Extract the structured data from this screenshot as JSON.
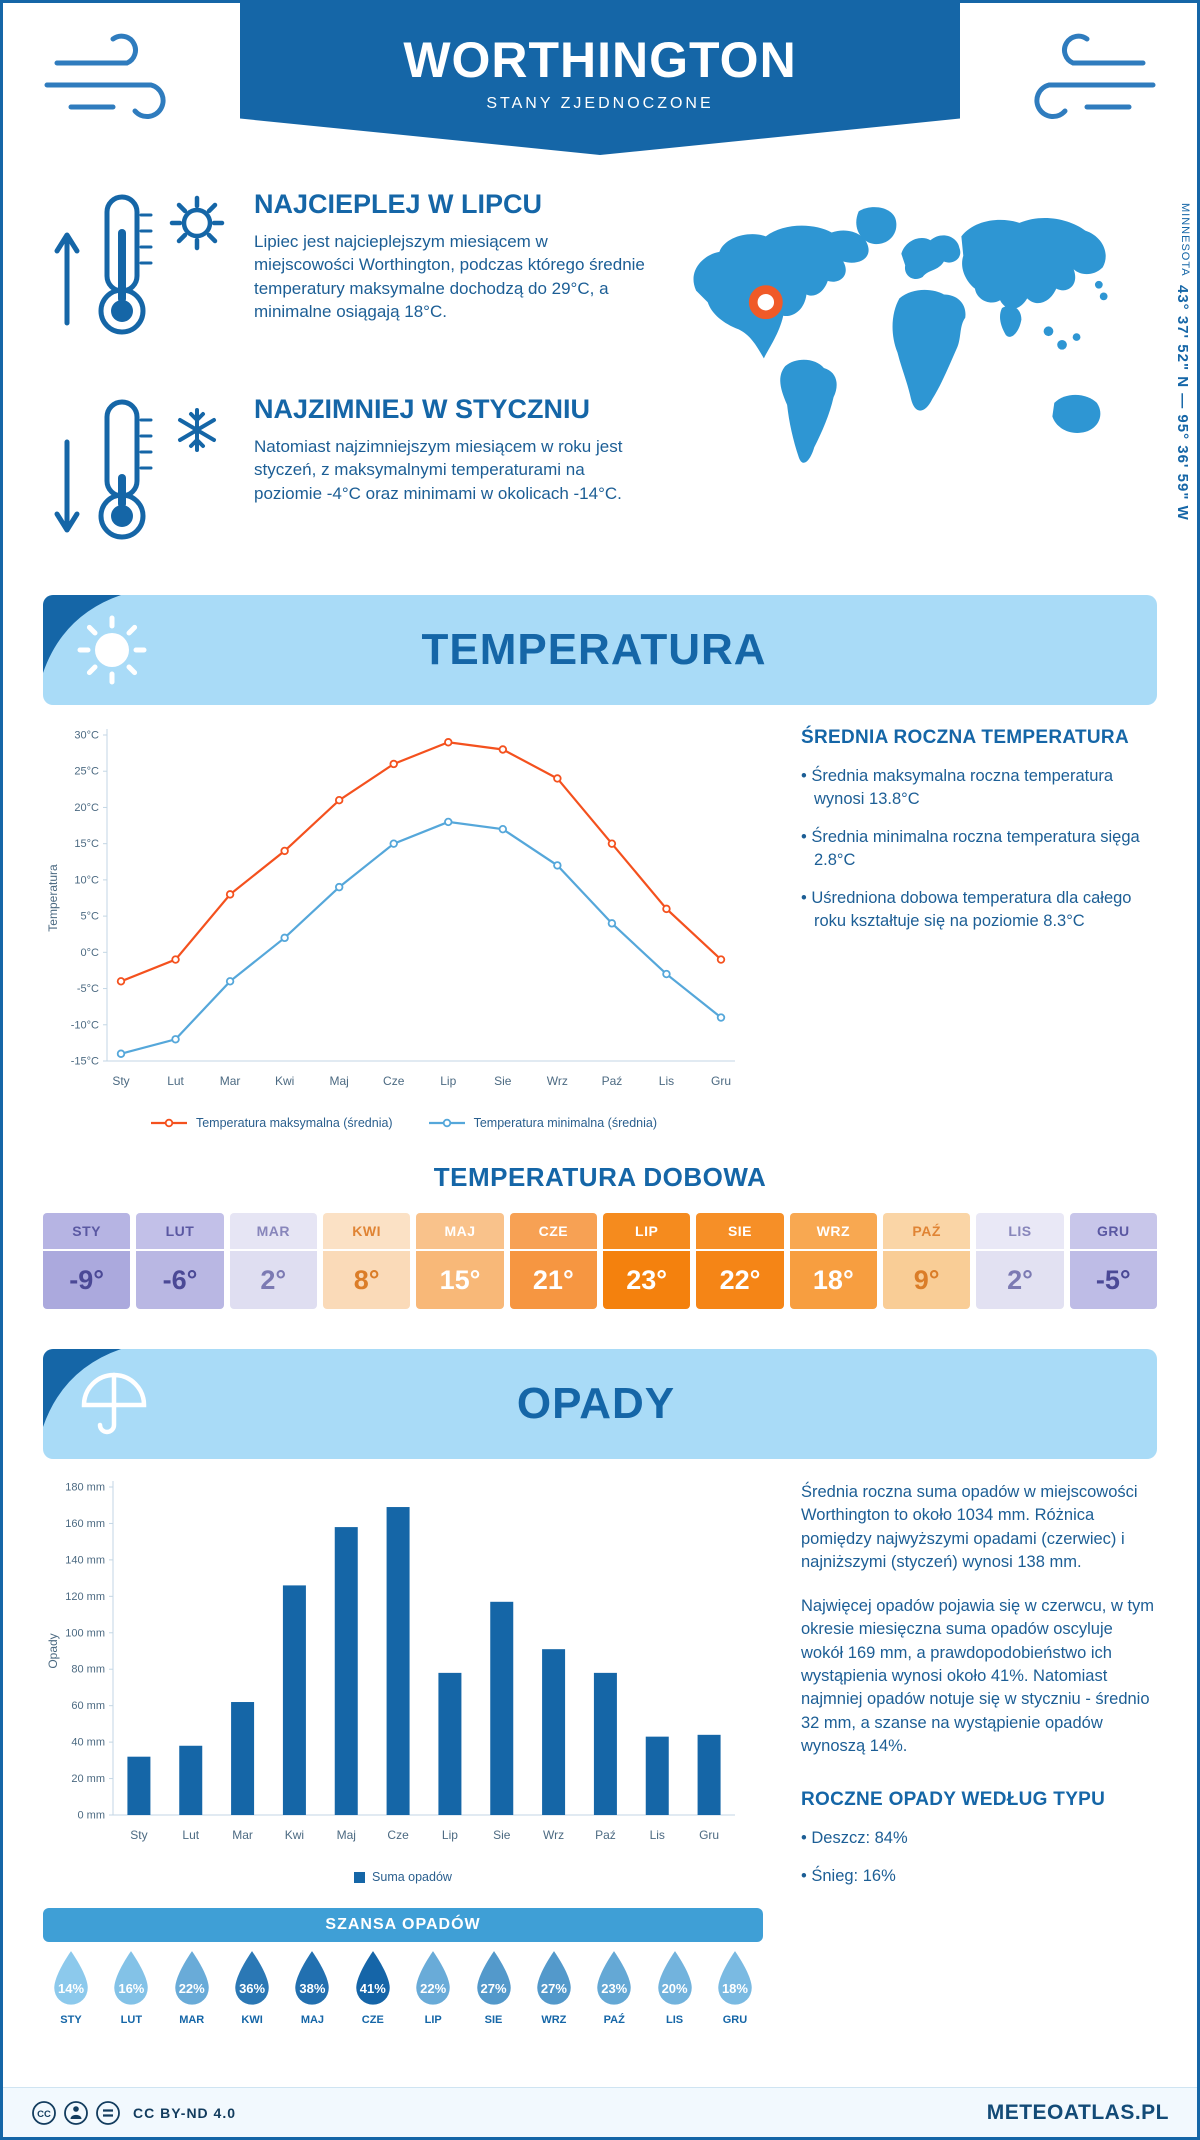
{
  "page": {
    "title": "WORTHINGTON",
    "subtitle": "STANY ZJEDNOCZONE",
    "region": "MINNESOTA",
    "coords": "43° 37' 52\" N — 95° 36' 59\" W"
  },
  "highlights": [
    {
      "title": "NAJCIEPLEJ W LIPCU",
      "text": "Lipiec jest najcieplejszym miesiącem w miejscowości Worthington, podczas którego średnie temperatury maksymalne dochodzą do 29°C, a minimalne osiągają 18°C."
    },
    {
      "title": "NAJZIMNIEJ W STYCZNIU",
      "text": "Natomiast najzimniejszym miesiącem w roku jest styczeń, z maksymalnymi temperaturami na poziomie -4°C oraz minimami w okolicach -14°C."
    }
  ],
  "sections": {
    "temperature": {
      "title": "TEMPERATURA",
      "summary_title": "ŚREDNIA ROCZNA TEMPERATURA",
      "bullets": [
        "• Średnia maksymalna roczna temperatura wynosi 13.8°C",
        "• Średnia minimalna roczna temperatura sięga 2.8°C",
        "• Uśredniona dobowa temperatura dla całego roku kształtuje się na poziomie 8.3°C"
      ],
      "daily_title": "TEMPERATURA DOBOWA"
    },
    "precipitation": {
      "title": "OPADY",
      "paragraphs": [
        "Średnia roczna suma opadów w miejscowości Worthington to około 1034 mm. Różnica pomiędzy najwyższymi opadami (czerwiec) i najniższymi (styczeń) wynosi 138 mm.",
        "Najwięcej opadów pojawia się w czerwcu, w tym okresie miesięczna suma opadów oscyluje wokół 169 mm, a prawdopodobieństwo ich wystąpienia wynosi około 41%. Natomiast najmniej opadów notuje się w styczniu - średnio 32 mm, a szanse na wystąpienie opadów wynoszą 14%."
      ],
      "type_title": "ROCZNE OPADY WEDŁUG TYPU",
      "type_bullets": [
        "• Deszcz: 84%",
        "• Śnieg: 16%"
      ],
      "chance_title": "SZANSA OPADÓW",
      "chance_colors": {
        "low": "#8cc9ec",
        "high": "#1565a8"
      },
      "chances": [
        {
          "month": "STY",
          "percent": "14%"
        },
        {
          "month": "LUT",
          "percent": "16%"
        },
        {
          "month": "MAR",
          "percent": "22%"
        },
        {
          "month": "KWI",
          "percent": "36%"
        },
        {
          "month": "MAJ",
          "percent": "38%"
        },
        {
          "month": "CZE",
          "percent": "41%"
        },
        {
          "month": "LIP",
          "percent": "22%"
        },
        {
          "month": "SIE",
          "percent": "27%"
        },
        {
          "month": "WRZ",
          "percent": "27%"
        },
        {
          "month": "PAŹ",
          "percent": "23%"
        },
        {
          "month": "LIS",
          "percent": "20%"
        },
        {
          "month": "GRU",
          "percent": "18%"
        }
      ]
    }
  },
  "chart_data": [
    {
      "type": "line",
      "title": "TEMPERATURA",
      "categories": [
        "Sty",
        "Lut",
        "Mar",
        "Kwi",
        "Maj",
        "Cze",
        "Lip",
        "Sie",
        "Wrz",
        "Paź",
        "Lis",
        "Gru"
      ],
      "series": [
        {
          "name": "Temperatura maksymalna (średnia)",
          "color": "#f4511e",
          "values": [
            -4,
            -1,
            8,
            14,
            21,
            26,
            29,
            28,
            24,
            15,
            6,
            -1
          ]
        },
        {
          "name": "Temperatura minimalna (średnia)",
          "color": "#55a7da",
          "values": [
            -14,
            -12,
            -4,
            2,
            9,
            15,
            18,
            17,
            12,
            4,
            -3,
            -9
          ]
        }
      ],
      "xlabel": "",
      "ylabel": "Temperatura",
      "ylim": [
        -15,
        30
      ],
      "ytick_step": 5,
      "ytick_suffix": "°C",
      "grid": false,
      "legend_position": "bottom"
    },
    {
      "type": "bar",
      "title": "OPADY",
      "categories": [
        "Sty",
        "Lut",
        "Mar",
        "Kwi",
        "Maj",
        "Cze",
        "Lip",
        "Sie",
        "Wrz",
        "Paź",
        "Lis",
        "Gru"
      ],
      "series": [
        {
          "name": "Suma opadów",
          "color": "#1566a7",
          "values": [
            32,
            38,
            62,
            126,
            158,
            169,
            78,
            117,
            91,
            78,
            43,
            44
          ]
        }
      ],
      "xlabel": "",
      "ylabel": "Opady",
      "ylim": [
        0,
        180
      ],
      "ytick_step": 20,
      "ytick_suffix": " mm",
      "grid": false,
      "legend_position": "bottom"
    }
  ],
  "monthly_temps": [
    {
      "month": "STY",
      "value": "-9°",
      "header_bg": "#b6b4e3",
      "value_bg": "#aba9dd",
      "header_fg": "#5a58a2",
      "value_fg": "#4b4996"
    },
    {
      "month": "LUT",
      "value": "-6°",
      "header_bg": "#c2c0e8",
      "value_bg": "#b9b7e3",
      "header_fg": "#5a58a2",
      "value_fg": "#4b4996"
    },
    {
      "month": "MAR",
      "value": "2°",
      "header_bg": "#e6e5f4",
      "value_bg": "#dfdef1",
      "header_fg": "#8886bb",
      "value_fg": "#7c7ab3"
    },
    {
      "month": "KWI",
      "value": "8°",
      "header_bg": "#fbe1c5",
      "value_bg": "#fadab8",
      "header_fg": "#e08434",
      "value_fg": "#db7d28"
    },
    {
      "month": "MAJ",
      "value": "15°",
      "header_bg": "#f9c28b",
      "value_bg": "#f8b878",
      "header_fg": "#ffffff",
      "value_fg": "#ffffff"
    },
    {
      "month": "CZE",
      "value": "21°",
      "header_bg": "#f7a154",
      "value_bg": "#f69641",
      "header_fg": "#ffffff",
      "value_fg": "#ffffff"
    },
    {
      "month": "LIP",
      "value": "23°",
      "header_bg": "#f58b1e",
      "value_bg": "#f4810d",
      "header_fg": "#ffffff",
      "value_fg": "#ffffff"
    },
    {
      "month": "SIE",
      "value": "22°",
      "header_bg": "#f68f27",
      "value_bg": "#f58516",
      "header_fg": "#ffffff",
      "value_fg": "#ffffff"
    },
    {
      "month": "WRZ",
      "value": "18°",
      "header_bg": "#f8a851",
      "value_bg": "#f79e40",
      "header_fg": "#ffffff",
      "value_fg": "#ffffff"
    },
    {
      "month": "PAŹ",
      "value": "9°",
      "header_bg": "#fad5a6",
      "value_bg": "#f9cd96",
      "header_fg": "#e08434",
      "value_fg": "#db7d28"
    },
    {
      "month": "LIS",
      "value": "2°",
      "header_bg": "#e9e8f6",
      "value_bg": "#e2e1f2",
      "header_fg": "#8886bb",
      "value_fg": "#7c7ab3"
    },
    {
      "month": "GRU",
      "value": "-5°",
      "header_bg": "#c8c6ea",
      "value_bg": "#bebce6",
      "header_fg": "#5a58a2",
      "value_fg": "#4b4996"
    }
  ],
  "footer": {
    "license": "CC BY-ND 4.0",
    "brand": "METEOATLAS.PL"
  }
}
